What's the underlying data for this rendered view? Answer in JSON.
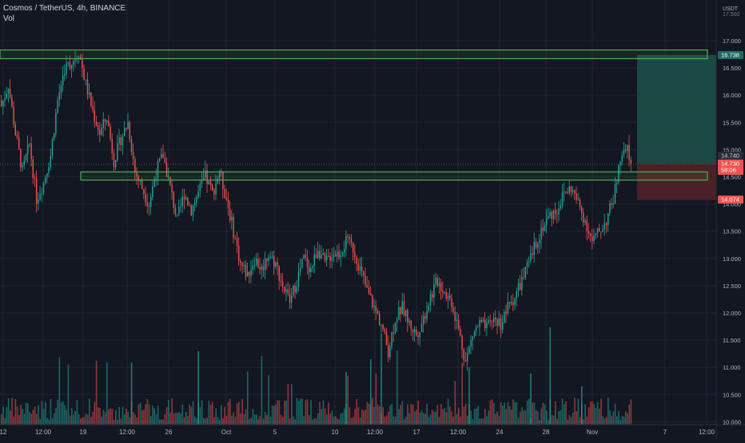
{
  "header": {
    "symbol": "Cosmos / TetherUS, 4h, BINANCE",
    "indicator": "Vol"
  },
  "price_axis": {
    "unit": "USDT",
    "ticks": [
      "17.000",
      "16.500",
      "16.000",
      "15.500",
      "15.000",
      "14.500",
      "14.000",
      "13.500",
      "13.000",
      "12.500",
      "12.000",
      "11.500",
      "11.000",
      "10.500",
      "10.000"
    ],
    "partial_tick": "17.500"
  },
  "time_axis": {
    "ticks": [
      "12",
      "12:00",
      "19",
      "12:00",
      "26",
      "Oct",
      "5",
      "10",
      "12:00",
      "17",
      "12:00",
      "24",
      "28",
      "Nov",
      "7",
      "12:00"
    ]
  },
  "price_labels": {
    "target": "16.738",
    "high": "14.740",
    "current": "14.730",
    "countdown": "58:06",
    "stop": "14.074"
  },
  "colors": {
    "background": "#131722",
    "up": "#26a69a",
    "down": "#ef5350",
    "zone": "#4caf50",
    "profit_area": "#1b4c47",
    "loss_area": "#4d2228",
    "grid": "#1f2430",
    "axis_text": "#b2b5be"
  },
  "chart_data": {
    "type": "candlestick",
    "title": "Cosmos / TetherUS, 4h, BINANCE",
    "symbol": "ATOM/USDT",
    "interval": "4h",
    "exchange": "BINANCE",
    "y_unit": "USDT",
    "ylim": [
      10.0,
      17.5
    ],
    "grid": true,
    "volume_pane": true,
    "zones": [
      {
        "name": "resistance",
        "low": 16.67,
        "high": 16.83
      },
      {
        "name": "support",
        "low": 14.44,
        "high": 14.59
      }
    ],
    "position": {
      "side": "long",
      "entry": 14.74,
      "target": 16.738,
      "stop": 14.074
    },
    "last_price": 14.73,
    "close_path": [
      [
        0,
        15.8
      ],
      [
        4,
        16.2
      ],
      [
        8,
        15.3
      ],
      [
        12,
        14.6
      ],
      [
        16,
        15.1
      ],
      [
        20,
        14.1
      ],
      [
        24,
        14.4
      ],
      [
        28,
        14.9
      ],
      [
        32,
        15.9
      ],
      [
        36,
        16.5
      ],
      [
        40,
        16.6
      ],
      [
        44,
        16.8
      ],
      [
        48,
        16.2
      ],
      [
        52,
        15.7
      ],
      [
        56,
        15.3
      ],
      [
        60,
        15.6
      ],
      [
        64,
        14.8
      ],
      [
        68,
        15.2
      ],
      [
        72,
        15.5
      ],
      [
        76,
        14.6
      ],
      [
        80,
        14.3
      ],
      [
        84,
        14.0
      ],
      [
        88,
        14.6
      ],
      [
        92,
        14.9
      ],
      [
        96,
        14.3
      ],
      [
        100,
        13.7
      ],
      [
        104,
        14.2
      ],
      [
        108,
        13.9
      ],
      [
        112,
        14.2
      ],
      [
        116,
        14.5
      ],
      [
        120,
        14.2
      ],
      [
        124,
        14.6
      ],
      [
        128,
        14.1
      ],
      [
        132,
        13.5
      ],
      [
        136,
        12.9
      ],
      [
        140,
        12.7
      ],
      [
        144,
        13.0
      ],
      [
        148,
        12.8
      ],
      [
        152,
        13.1
      ],
      [
        156,
        12.9
      ],
      [
        160,
        12.5
      ],
      [
        164,
        12.2
      ],
      [
        168,
        12.6
      ],
      [
        172,
        13.0
      ],
      [
        176,
        12.8
      ],
      [
        180,
        13.2
      ],
      [
        184,
        12.9
      ],
      [
        188,
        13.1
      ],
      [
        192,
        13.1
      ],
      [
        196,
        13.3
      ],
      [
        200,
        13.2
      ],
      [
        204,
        12.8
      ],
      [
        208,
        12.4
      ],
      [
        212,
        12.1
      ],
      [
        216,
        11.8
      ],
      [
        220,
        11.3
      ],
      [
        224,
        11.9
      ],
      [
        228,
        12.1
      ],
      [
        232,
        11.8
      ],
      [
        236,
        11.6
      ],
      [
        240,
        11.9
      ],
      [
        244,
        12.3
      ],
      [
        248,
        12.6
      ],
      [
        252,
        12.4
      ],
      [
        256,
        12.2
      ],
      [
        260,
        11.7
      ],
      [
        264,
        11.1
      ],
      [
        268,
        11.6
      ],
      [
        272,
        11.8
      ],
      [
        276,
        11.7
      ],
      [
        280,
        11.9
      ],
      [
        284,
        11.8
      ],
      [
        288,
        12.1
      ],
      [
        292,
        12.3
      ],
      [
        296,
        12.6
      ],
      [
        300,
        12.9
      ],
      [
        304,
        13.3
      ],
      [
        308,
        13.6
      ],
      [
        312,
        13.8
      ],
      [
        316,
        13.9
      ],
      [
        320,
        14.2
      ],
      [
        324,
        14.3
      ],
      [
        328,
        14.0
      ],
      [
        332,
        13.7
      ],
      [
        336,
        13.3
      ],
      [
        340,
        13.5
      ],
      [
        344,
        13.7
      ],
      [
        348,
        14.1
      ],
      [
        352,
        14.8
      ],
      [
        356,
        15.0
      ],
      [
        358,
        14.73
      ]
    ]
  }
}
